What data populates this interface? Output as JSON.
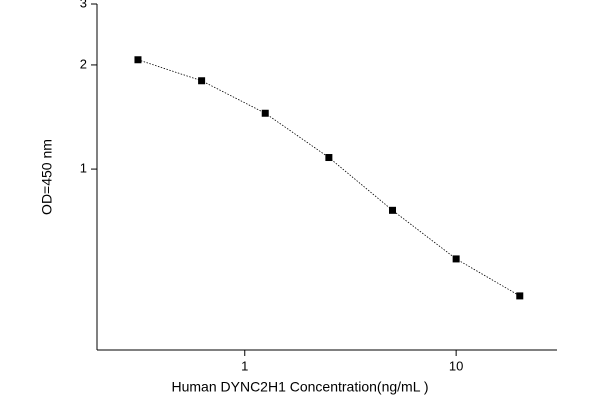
{
  "chart_data": {
    "type": "line",
    "xlabel": "Human DYNC2H1 Concentration(ng/mL )",
    "ylabel": "OD=450 nm",
    "x": [
      0.3125,
      0.625,
      1.25,
      2.5,
      5,
      10,
      20
    ],
    "series": [
      {
        "color": "#000000",
        "values": [
          2.07,
          1.8,
          1.45,
          1.08,
          0.76,
          0.55,
          0.43
        ]
      }
    ],
    "xscale": "log",
    "yscale": "log",
    "xlim": [
      0.2,
      30
    ],
    "ylim": [
      0.3,
      3
    ],
    "xticks": [
      1,
      10
    ],
    "yticks": [
      1,
      2,
      3
    ]
  }
}
